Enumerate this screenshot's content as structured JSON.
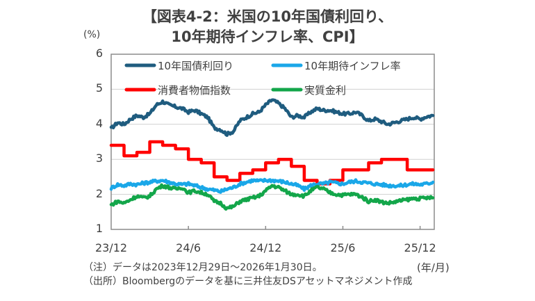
{
  "title_line1": "【図表4-2：米国の10年国債利回り、",
  "title_line2": "10年期待インフレ率、CPI】",
  "y_unit": "(%)",
  "x_unit": "(年/月)",
  "note": "（注）データは2023年12月29日～2026年1月30日。",
  "source": "（出所）Bloombergのデータを基に三井住友DSアセットマネジメント作成",
  "chart_data": {
    "type": "line",
    "title": "【図表4-2：米国の10年国債利回り、10年期待インフレ率、CPI】",
    "xlabel": "(年/月)",
    "ylabel": "(%)",
    "ylim": [
      1,
      6
    ],
    "yticks": [
      "1",
      "2",
      "3",
      "4",
      "5",
      "6"
    ],
    "xlim_months": [
      0,
      25.1
    ],
    "xticks": [
      {
        "label": "23/12",
        "month": 0
      },
      {
        "label": "24/6",
        "month": 6
      },
      {
        "label": "24/12",
        "month": 12
      },
      {
        "label": "25/6",
        "month": 18
      },
      {
        "label": "25/12",
        "month": 24
      }
    ],
    "grid": "horizontal",
    "legend_position": "top-left (inside, 2 columns)",
    "x_months": [
      0,
      0.5,
      1,
      1.5,
      2,
      2.5,
      3,
      3.5,
      4,
      4.5,
      5,
      5.5,
      6,
      6.5,
      7,
      7.5,
      8,
      8.5,
      9,
      9.5,
      10,
      10.5,
      11,
      11.5,
      12,
      12.5,
      13,
      13.5,
      14,
      14.5,
      15,
      15.5,
      16,
      16.5,
      17,
      17.5,
      18,
      18.5,
      19,
      19.5,
      20,
      20.5,
      21,
      21.5,
      22,
      22.5,
      23,
      23.5,
      24,
      24.5,
      25
    ],
    "series": [
      {
        "name": "10年国債利回り",
        "color": "#1f5c7f",
        "step": false,
        "values": [
          3.88,
          4.05,
          4.0,
          4.15,
          4.25,
          4.2,
          4.3,
          4.55,
          4.65,
          4.55,
          4.5,
          4.45,
          4.35,
          4.4,
          4.3,
          4.2,
          3.9,
          3.85,
          3.72,
          3.8,
          4.1,
          4.2,
          4.3,
          4.35,
          4.55,
          4.7,
          4.6,
          4.45,
          4.2,
          4.25,
          4.2,
          4.35,
          4.45,
          4.4,
          4.4,
          4.35,
          4.3,
          4.3,
          4.35,
          4.25,
          4.1,
          4.15,
          4.08,
          4.0,
          4.05,
          4.1,
          4.15,
          4.2,
          4.15,
          4.22,
          4.25
        ]
      },
      {
        "name": "10年期待インフレ率",
        "color": "#1aa7e8",
        "step": false,
        "values": [
          2.18,
          2.28,
          2.25,
          2.3,
          2.28,
          2.32,
          2.35,
          2.38,
          2.4,
          2.35,
          2.3,
          2.28,
          2.3,
          2.25,
          2.2,
          2.15,
          2.12,
          2.08,
          2.15,
          2.2,
          2.3,
          2.35,
          2.4,
          2.38,
          2.4,
          2.4,
          2.38,
          2.35,
          2.3,
          2.25,
          2.15,
          2.25,
          2.3,
          2.3,
          2.35,
          2.32,
          2.3,
          2.35,
          2.38,
          2.35,
          2.32,
          2.3,
          2.28,
          2.25,
          2.25,
          2.25,
          2.28,
          2.3,
          2.28,
          2.3,
          2.35
        ]
      },
      {
        "name": "消費者物価指数",
        "color": "#ff0000",
        "step": true,
        "values": [
          3.4,
          3.4,
          3.1,
          3.1,
          3.2,
          3.2,
          3.5,
          3.5,
          3.4,
          3.4,
          3.3,
          3.3,
          3.0,
          3.0,
          2.9,
          2.9,
          2.5,
          2.5,
          2.4,
          2.4,
          2.6,
          2.6,
          2.7,
          2.7,
          2.9,
          2.9,
          3.0,
          3.0,
          2.8,
          2.8,
          2.4,
          2.4,
          2.3,
          2.3,
          2.4,
          2.4,
          2.7,
          2.7,
          2.7,
          2.7,
          2.9,
          2.9,
          3.0,
          3.0,
          3.0,
          3.0,
          2.7,
          2.7,
          2.7,
          2.7,
          2.7
        ]
      },
      {
        "name": "実質金利",
        "color": "#13a64a",
        "step": false,
        "values": [
          1.7,
          1.8,
          1.75,
          1.85,
          1.95,
          1.9,
          1.95,
          2.15,
          2.25,
          2.2,
          2.15,
          2.2,
          2.05,
          2.1,
          2.05,
          2.0,
          1.8,
          1.75,
          1.6,
          1.65,
          1.8,
          1.85,
          1.9,
          1.95,
          2.1,
          2.25,
          2.2,
          2.1,
          2.0,
          2.0,
          1.95,
          2.1,
          2.2,
          2.15,
          2.05,
          2.0,
          1.98,
          2.0,
          2.0,
          1.92,
          1.8,
          1.85,
          1.78,
          1.75,
          1.78,
          1.82,
          1.85,
          1.88,
          1.88,
          1.9,
          1.9
        ]
      }
    ]
  }
}
